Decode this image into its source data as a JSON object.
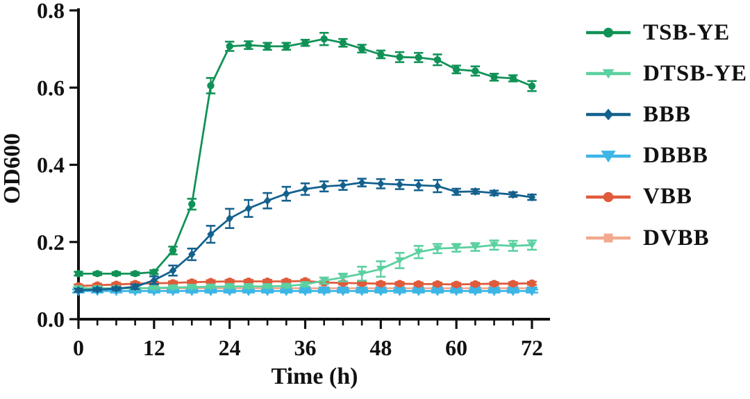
{
  "chart_data": {
    "type": "line",
    "title": "",
    "xlabel": "Time (h)",
    "ylabel": "OD600",
    "xlim": [
      0,
      72
    ],
    "ylim": [
      0.0,
      0.8
    ],
    "x_major_ticks": [
      0,
      12,
      24,
      36,
      48,
      60,
      72
    ],
    "x_minor_step": 3,
    "y_ticks": [
      0.0,
      0.2,
      0.4,
      0.6,
      0.8
    ],
    "y_tick_labels": [
      "0.0",
      "0.2",
      "0.4",
      "0.6",
      "0.8"
    ],
    "grid": false,
    "legend_position": "right",
    "axis_color": "#111111",
    "background_color": "#ffffff",
    "x": [
      0,
      3,
      6,
      9,
      12,
      15,
      18,
      21,
      24,
      27,
      30,
      33,
      36,
      39,
      42,
      45,
      48,
      51,
      54,
      57,
      60,
      63,
      66,
      69,
      72
    ],
    "draw_order": [
      "DVBB",
      "DBBB",
      "VBB",
      "DTSB-YE",
      "BBB",
      "TSB-YE"
    ],
    "series": [
      {
        "name": "TSB-YE",
        "color": "#109257",
        "marker": "circle",
        "marker_size": 5.2,
        "values": [
          0.118,
          0.118,
          0.118,
          0.118,
          0.122,
          0.178,
          0.298,
          0.605,
          0.707,
          0.71,
          0.707,
          0.707,
          0.716,
          0.726,
          0.716,
          0.701,
          0.686,
          0.679,
          0.678,
          0.672,
          0.647,
          0.643,
          0.627,
          0.624,
          0.604
        ],
        "errors": [
          0.005,
          0.004,
          0.004,
          0.004,
          0.005,
          0.01,
          0.014,
          0.02,
          0.012,
          0.01,
          0.009,
          0.009,
          0.008,
          0.016,
          0.01,
          0.01,
          0.01,
          0.013,
          0.012,
          0.014,
          0.01,
          0.012,
          0.009,
          0.008,
          0.013
        ]
      },
      {
        "name": "DTSB-YE",
        "color": "#5bd0a0",
        "marker": "triangle-down",
        "marker_size": 5.5,
        "values": [
          0.08,
          0.08,
          0.08,
          0.08,
          0.081,
          0.082,
          0.083,
          0.084,
          0.085,
          0.085,
          0.085,
          0.086,
          0.09,
          0.1,
          0.108,
          0.118,
          0.13,
          0.152,
          0.174,
          0.183,
          0.185,
          0.187,
          0.192,
          0.19,
          0.192
        ],
        "errors": [
          0.003,
          0.003,
          0.003,
          0.003,
          0.003,
          0.003,
          0.003,
          0.003,
          0.004,
          0.004,
          0.004,
          0.004,
          0.005,
          0.008,
          0.01,
          0.018,
          0.02,
          0.02,
          0.016,
          0.012,
          0.01,
          0.01,
          0.012,
          0.013,
          0.012
        ]
      },
      {
        "name": "BBB",
        "color": "#14618e",
        "marker": "diamond",
        "marker_size": 5.2,
        "values": [
          0.075,
          0.077,
          0.079,
          0.084,
          0.101,
          0.126,
          0.168,
          0.22,
          0.261,
          0.287,
          0.307,
          0.325,
          0.337,
          0.344,
          0.347,
          0.354,
          0.351,
          0.349,
          0.347,
          0.345,
          0.33,
          0.331,
          0.327,
          0.323,
          0.316
        ],
        "errors": [
          0.004,
          0.004,
          0.004,
          0.006,
          0.01,
          0.013,
          0.015,
          0.022,
          0.025,
          0.022,
          0.02,
          0.018,
          0.015,
          0.013,
          0.012,
          0.01,
          0.012,
          0.012,
          0.013,
          0.016,
          0.008,
          0.006,
          0.006,
          0.006,
          0.007
        ]
      },
      {
        "name": "DBBB",
        "color": "#3db6e6",
        "marker": "triangle-down",
        "marker_size": 7.5,
        "values": [
          0.073,
          0.073,
          0.073,
          0.073,
          0.073,
          0.073,
          0.073,
          0.073,
          0.073,
          0.073,
          0.073,
          0.073,
          0.073,
          0.073,
          0.073,
          0.073,
          0.073,
          0.073,
          0.073,
          0.073,
          0.073,
          0.073,
          0.073,
          0.073,
          0.073
        ],
        "errors": [
          0.004,
          0.004,
          0.004,
          0.004,
          0.004,
          0.004,
          0.004,
          0.004,
          0.004,
          0.004,
          0.004,
          0.004,
          0.004,
          0.004,
          0.004,
          0.004,
          0.004,
          0.004,
          0.004,
          0.004,
          0.004,
          0.004,
          0.004,
          0.004,
          0.004
        ]
      },
      {
        "name": "VBB",
        "color": "#df5b3b",
        "marker": "circle",
        "marker_size": 5.5,
        "values": [
          0.086,
          0.088,
          0.09,
          0.092,
          0.093,
          0.094,
          0.096,
          0.097,
          0.098,
          0.098,
          0.098,
          0.098,
          0.099,
          0.095,
          0.094,
          0.093,
          0.092,
          0.092,
          0.091,
          0.091,
          0.09,
          0.091,
          0.092,
          0.092,
          0.093
        ],
        "errors": [
          0.004,
          0.004,
          0.004,
          0.004,
          0.004,
          0.004,
          0.004,
          0.004,
          0.004,
          0.004,
          0.004,
          0.004,
          0.004,
          0.004,
          0.004,
          0.004,
          0.004,
          0.004,
          0.004,
          0.004,
          0.004,
          0.004,
          0.004,
          0.004,
          0.004
        ]
      },
      {
        "name": "DVBB",
        "color": "#f2a98d",
        "marker": "square",
        "marker_size": 4.6,
        "values": [
          0.08,
          0.08,
          0.08,
          0.08,
          0.08,
          0.08,
          0.08,
          0.08,
          0.08,
          0.08,
          0.08,
          0.08,
          0.08,
          0.08,
          0.08,
          0.08,
          0.08,
          0.08,
          0.08,
          0.08,
          0.08,
          0.08,
          0.08,
          0.08,
          0.08
        ],
        "errors": [
          0.003,
          0.003,
          0.003,
          0.003,
          0.003,
          0.003,
          0.003,
          0.003,
          0.003,
          0.003,
          0.003,
          0.003,
          0.003,
          0.003,
          0.003,
          0.003,
          0.003,
          0.003,
          0.003,
          0.003,
          0.003,
          0.003,
          0.003,
          0.003,
          0.003
        ]
      }
    ]
  }
}
